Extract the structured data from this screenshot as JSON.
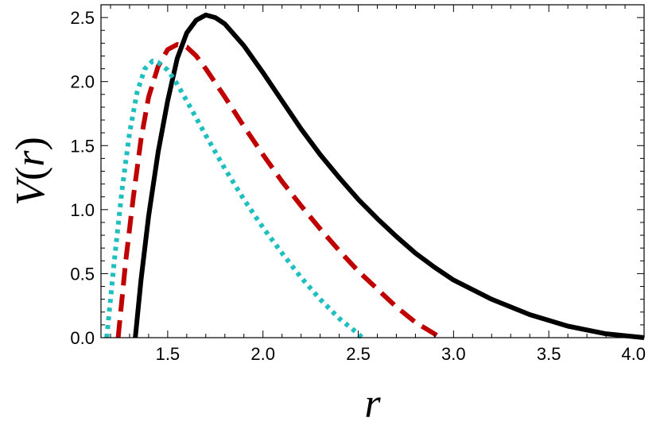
{
  "chart_data": {
    "type": "line",
    "title": "",
    "xlabel": "r",
    "ylabel": "V(r)",
    "ylabel_parts": [
      "V",
      "(",
      "r",
      ")"
    ],
    "xlim": [
      1.15,
      4.0
    ],
    "ylim": [
      0.0,
      2.6
    ],
    "x_ticks": [
      1.5,
      2.0,
      2.5,
      3.0,
      3.5,
      4.0
    ],
    "x_tick_labels": [
      "1.5",
      "2.0",
      "2.5",
      "3.0",
      "3.5",
      "4.0"
    ],
    "y_ticks": [
      0.0,
      0.5,
      1.0,
      1.5,
      2.0,
      2.5
    ],
    "y_tick_labels": [
      "0.0",
      "0.5",
      "1.0",
      "1.5",
      "2.0",
      "2.5"
    ],
    "grid": false,
    "legend": "none",
    "series": [
      {
        "style": "solid",
        "color": "#000000",
        "x": [
          1.33,
          1.36,
          1.4,
          1.45,
          1.5,
          1.55,
          1.6,
          1.65,
          1.7,
          1.75,
          1.8,
          1.9,
          2.0,
          2.1,
          2.2,
          2.3,
          2.4,
          2.5,
          2.6,
          2.7,
          2.8,
          2.9,
          3.0,
          3.2,
          3.4,
          3.6,
          3.8,
          4.0
        ],
        "y": [
          0.0,
          0.45,
          0.95,
          1.45,
          1.85,
          2.18,
          2.38,
          2.48,
          2.52,
          2.5,
          2.45,
          2.28,
          2.07,
          1.85,
          1.63,
          1.43,
          1.25,
          1.08,
          0.93,
          0.79,
          0.66,
          0.55,
          0.45,
          0.3,
          0.18,
          0.09,
          0.03,
          0.0
        ]
      },
      {
        "style": "dashed",
        "color": "#c00000",
        "x": [
          1.24,
          1.28,
          1.32,
          1.36,
          1.4,
          1.45,
          1.5,
          1.55,
          1.6,
          1.65,
          1.7,
          1.8,
          1.9,
          2.0,
          2.1,
          2.2,
          2.3,
          2.4,
          2.5,
          2.6,
          2.7,
          2.8,
          2.9,
          2.93
        ],
        "y": [
          0.0,
          0.6,
          1.1,
          1.55,
          1.88,
          2.12,
          2.25,
          2.29,
          2.27,
          2.2,
          2.1,
          1.88,
          1.65,
          1.43,
          1.22,
          1.03,
          0.85,
          0.68,
          0.52,
          0.38,
          0.24,
          0.12,
          0.03,
          0.0
        ]
      },
      {
        "style": "dotted",
        "color": "#1fbfc0",
        "x": [
          1.18,
          1.22,
          1.26,
          1.3,
          1.34,
          1.38,
          1.42,
          1.45,
          1.5,
          1.55,
          1.6,
          1.7,
          1.8,
          1.9,
          2.0,
          2.1,
          2.2,
          2.3,
          2.4,
          2.5,
          2.52
        ],
        "y": [
          0.0,
          0.6,
          1.15,
          1.6,
          1.92,
          2.1,
          2.16,
          2.15,
          2.09,
          1.98,
          1.85,
          1.58,
          1.32,
          1.08,
          0.86,
          0.66,
          0.47,
          0.3,
          0.15,
          0.03,
          0.0
        ]
      }
    ]
  }
}
